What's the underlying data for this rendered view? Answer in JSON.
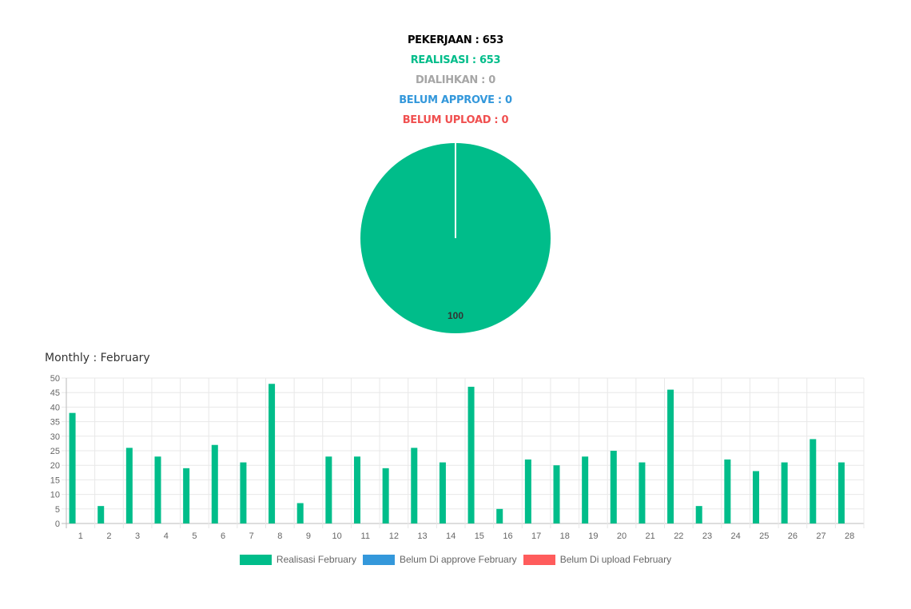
{
  "summary": {
    "pekerjaan": "PEKERJAAN : 653",
    "realisasi": "REALISASI : 653",
    "dialihkan": "DIALIHKAN : 0",
    "belum_approve": "BELUM APPROVE : 0",
    "belum_upload": "BELUM UPLOAD : 0"
  },
  "colors": {
    "pekerjaan": "#000000",
    "realisasi": "#00bd8a",
    "dialihkan": "#a6a6a6",
    "belum_approve": "#3498db",
    "belum_upload": "#f05050"
  },
  "section_title": "Monthly : February",
  "chart_data": [
    {
      "type": "pie",
      "slices": [
        {
          "value": 100,
          "label": "100",
          "color": "#00bd8a"
        }
      ]
    },
    {
      "type": "bar",
      "categories": [
        "1",
        "2",
        "3",
        "4",
        "5",
        "6",
        "7",
        "8",
        "9",
        "10",
        "11",
        "12",
        "13",
        "14",
        "15",
        "16",
        "17",
        "18",
        "19",
        "20",
        "21",
        "22",
        "23",
        "24",
        "25",
        "26",
        "27",
        "28"
      ],
      "series": [
        {
          "name": "Realisasi February",
          "color": "#00bd8a",
          "values": [
            38,
            6,
            26,
            23,
            19,
            27,
            21,
            48,
            7,
            23,
            23,
            19,
            26,
            21,
            47,
            5,
            22,
            20,
            23,
            25,
            21,
            46,
            6,
            22,
            18,
            21,
            29,
            21
          ]
        },
        {
          "name": "Belum Di approve February",
          "color": "#3498db",
          "values": [
            0,
            0,
            0,
            0,
            0,
            0,
            0,
            0,
            0,
            0,
            0,
            0,
            0,
            0,
            0,
            0,
            0,
            0,
            0,
            0,
            0,
            0,
            0,
            0,
            0,
            0,
            0,
            0
          ]
        },
        {
          "name": "Belum Di upload February",
          "color": "#ff5c5c",
          "values": [
            0,
            0,
            0,
            0,
            0,
            0,
            0,
            0,
            0,
            0,
            0,
            0,
            0,
            0,
            0,
            0,
            0,
            0,
            0,
            0,
            0,
            0,
            0,
            0,
            0,
            0,
            0,
            0
          ]
        }
      ],
      "ylim": [
        0,
        50
      ],
      "yticks": [
        0,
        5,
        10,
        15,
        20,
        25,
        30,
        35,
        40,
        45,
        50
      ],
      "grid": true,
      "legend": "bottom"
    }
  ]
}
